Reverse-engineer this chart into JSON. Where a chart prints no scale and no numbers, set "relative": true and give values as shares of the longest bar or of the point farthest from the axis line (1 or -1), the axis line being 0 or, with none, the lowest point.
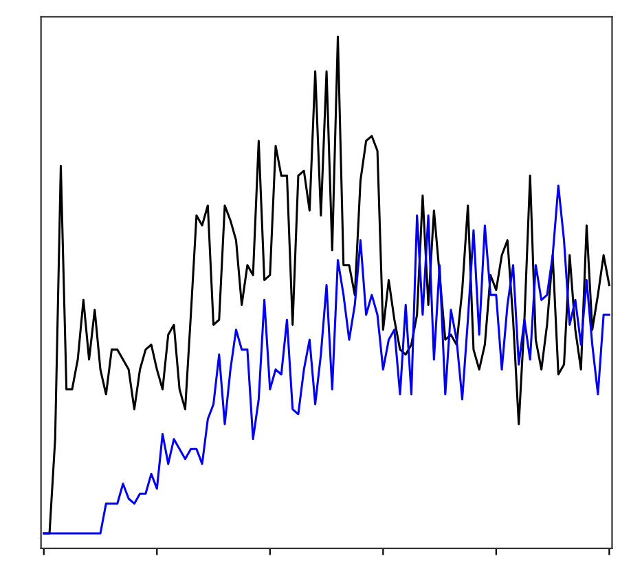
{
  "chart_data": {
    "type": "line",
    "relative": true,
    "categories": [
      null,
      null,
      null,
      null,
      null,
      null,
      null,
      null,
      null,
      null,
      null,
      null,
      null,
      null,
      null,
      null,
      null,
      null,
      null,
      null,
      null,
      null,
      null,
      null,
      null,
      null,
      null,
      null,
      null,
      null,
      null,
      null,
      null,
      null,
      null,
      null,
      null,
      null,
      null,
      null,
      null,
      null,
      null,
      null,
      null,
      null,
      null,
      null,
      null,
      null,
      null,
      null,
      null,
      null,
      null,
      null,
      null,
      null,
      null,
      null,
      null,
      null,
      null,
      null,
      null,
      null,
      null,
      null,
      null,
      null,
      null,
      null,
      null,
      null,
      null,
      null,
      null,
      null,
      null,
      null,
      null,
      null,
      null,
      null,
      null,
      null,
      null,
      null,
      null,
      null,
      null,
      null,
      null,
      null,
      null,
      null,
      null,
      null,
      null,
      null,
      null
    ],
    "series": [
      {
        "color": "#000000",
        "values": [
          0,
          0,
          0.19,
          0.74,
          0.29,
          0.29,
          0.35,
          0.47,
          0.35,
          0.45,
          0.33,
          0.28,
          0.37,
          0.37,
          0.35,
          0.33,
          0.25,
          0.33,
          0.37,
          0.38,
          0.33,
          0.29,
          0.4,
          0.42,
          0.29,
          0.25,
          0.44,
          0.64,
          0.62,
          0.66,
          0.42,
          0.43,
          0.66,
          0.63,
          0.59,
          0.46,
          0.54,
          0.52,
          0.79,
          0.51,
          0.52,
          0.78,
          0.72,
          0.72,
          0.42,
          0.72,
          0.73,
          0.65,
          0.93,
          0.64,
          0.93,
          0.57,
          1,
          0.54,
          0.54,
          0.48,
          0.71,
          0.79,
          0.8,
          0.77,
          0.41,
          0.51,
          0.43,
          0.37,
          0.36,
          0.38,
          0.44,
          0.68,
          0.46,
          0.65,
          0.52,
          0.39,
          0.4,
          0.38,
          0.49,
          0.66,
          0.37,
          0.33,
          0.38,
          0.52,
          0.49,
          0.56,
          0.59,
          0.43,
          0.22,
          0.43,
          0.72,
          0.39,
          0.33,
          0.42,
          0.56,
          0.32,
          0.34,
          0.56,
          0.41,
          0.33,
          0.62,
          0.41,
          0.48,
          0.56,
          0.5
        ]
      },
      {
        "color": "#0000ee",
        "values": [
          0,
          0,
          0,
          0,
          0,
          0,
          0,
          0,
          0,
          0,
          0,
          0.06,
          0.06,
          0.06,
          0.1,
          0.07,
          0.06,
          0.08,
          0.08,
          0.12,
          0.09,
          0.2,
          0.14,
          0.19,
          0.17,
          0.15,
          0.17,
          0.17,
          0.14,
          0.23,
          0.26,
          0.36,
          0.22,
          0.33,
          0.41,
          0.37,
          0.37,
          0.19,
          0.27,
          0.47,
          0.29,
          0.33,
          0.32,
          0.43,
          0.25,
          0.24,
          0.33,
          0.39,
          0.26,
          0.36,
          0.5,
          0.29,
          0.55,
          0.48,
          0.39,
          0.46,
          0.59,
          0.44,
          0.48,
          0.44,
          0.33,
          0.39,
          0.41,
          0.28,
          0.46,
          0.28,
          0.64,
          0.44,
          0.64,
          0.35,
          0.54,
          0.28,
          0.45,
          0.39,
          0.27,
          0.43,
          0.61,
          0.4,
          0.62,
          0.48,
          0.48,
          0.33,
          0.46,
          0.54,
          0.34,
          0.43,
          0.35,
          0.54,
          0.47,
          0.48,
          0.56,
          0.7,
          0.59,
          0.42,
          0.47,
          0.38,
          0.51,
          0.38,
          0.28,
          0.44,
          0.44
        ]
      }
    ]
  }
}
